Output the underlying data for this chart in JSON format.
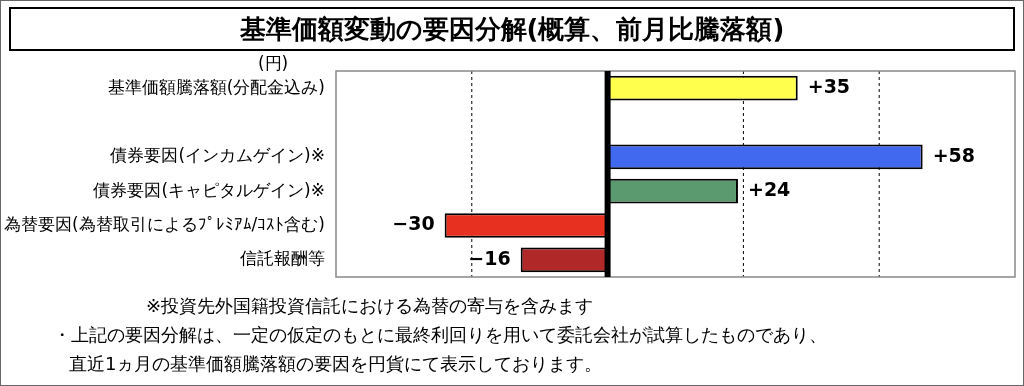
{
  "chart_data": {
    "type": "bar",
    "orientation": "horizontal",
    "title": "基準価額変動の要因分解(概算、前月比騰落額)",
    "ylabel": "(円)",
    "categories": [
      "基準価額騰落額(分配金込み)",
      null,
      "債券要因(インカムゲイン)※",
      "債券要因(キャピタルゲイン)※",
      "為替要因(為替取引によるﾌﾟﾚﾐｱﾑ/ｺｽﾄ含む)",
      "信託報酬等"
    ],
    "values": [
      35,
      null,
      58,
      24,
      -30,
      -16
    ],
    "colors": [
      "#ffff4d",
      "#000000",
      "#4169f0",
      "#5a9a6e",
      "#e83020",
      "#b02828"
    ],
    "value_labels": [
      "+35",
      null,
      "+58",
      "+24",
      "−30",
      "−16"
    ],
    "xlim": [
      -50,
      75
    ],
    "xticks": [
      {
        "value": -25,
        "label": null
      },
      {
        "value": 0,
        "label": null
      },
      {
        "value": 25,
        "label": null
      },
      {
        "value": 50,
        "label": null
      }
    ],
    "tick_labels": "y",
    "grid": "x",
    "annotations": [
      "※投資先外国籍投資信託における為替の寄与を含みます",
      "・上記の要因分解は、一定の仮定のもとに最終利回りを用いて委託会社が試算したものであり、",
      "直近1ヵ月の基準価額騰落額の要因を円貨にて表示しております。"
    ]
  }
}
